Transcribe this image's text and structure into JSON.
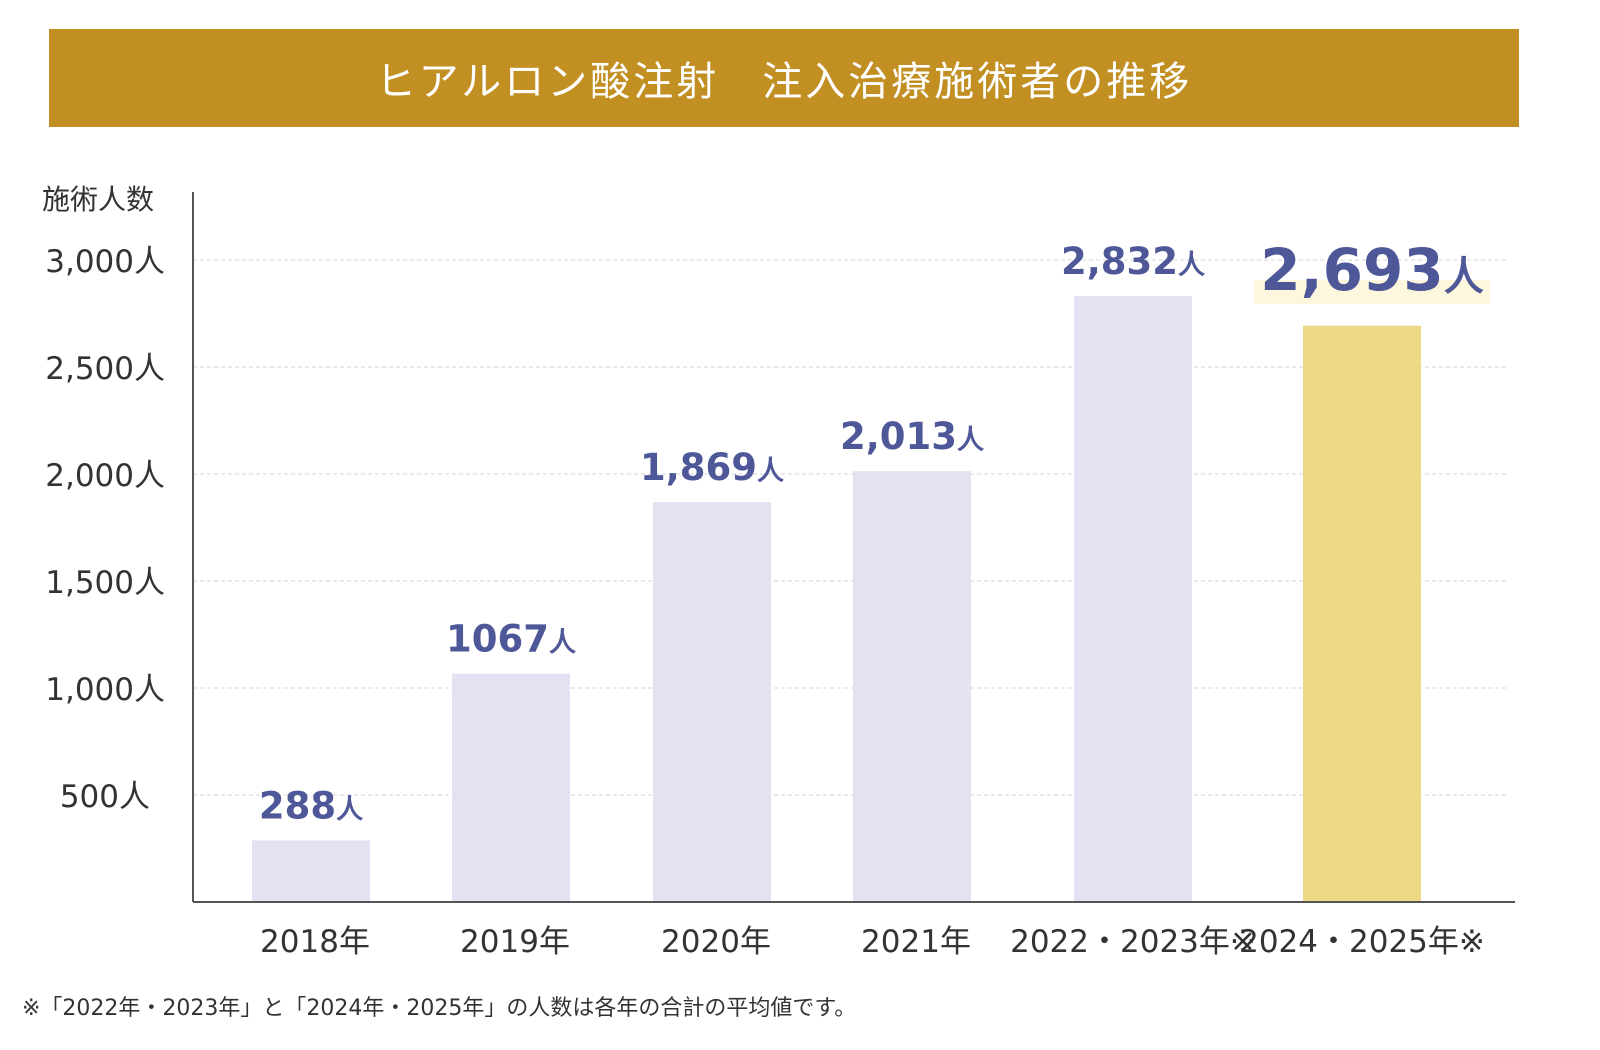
{
  "chart_data": {
    "type": "bar",
    "title": "ヒアルロン酸注射　注入治療施術者の推移",
    "ylabel": "施術人数",
    "xlabel": "",
    "ylim": [
      0,
      3300
    ],
    "yticks": [
      500,
      1000,
      1500,
      2000,
      2500,
      3000
    ],
    "ytick_labels": [
      "500人",
      "1,000人",
      "1,500人",
      "2,000人",
      "2,500人",
      "3,000人"
    ],
    "grid": true,
    "categories": [
      "2018年",
      "2019年",
      "2020年",
      "2021年",
      "2022・2023年※",
      "2024・2025年※"
    ],
    "values": [
      288,
      1067,
      1869,
      2013,
      2832,
      2693
    ],
    "data_labels": [
      "288",
      "1067",
      "1,869",
      "2,013",
      "2,832",
      "2,693"
    ],
    "data_label_unit": "人",
    "highlight_index": 5,
    "colors": {
      "bar": "#e3e2f2",
      "highlight_bar": "#edd886",
      "label": "#4e5797",
      "highlight_bg": "#fdf7dd",
      "title_band": "#c28f22"
    }
  },
  "footnote": "※「2022年・2023年」と「2024年・2025年」の人数は各年の合計の平均値です。"
}
